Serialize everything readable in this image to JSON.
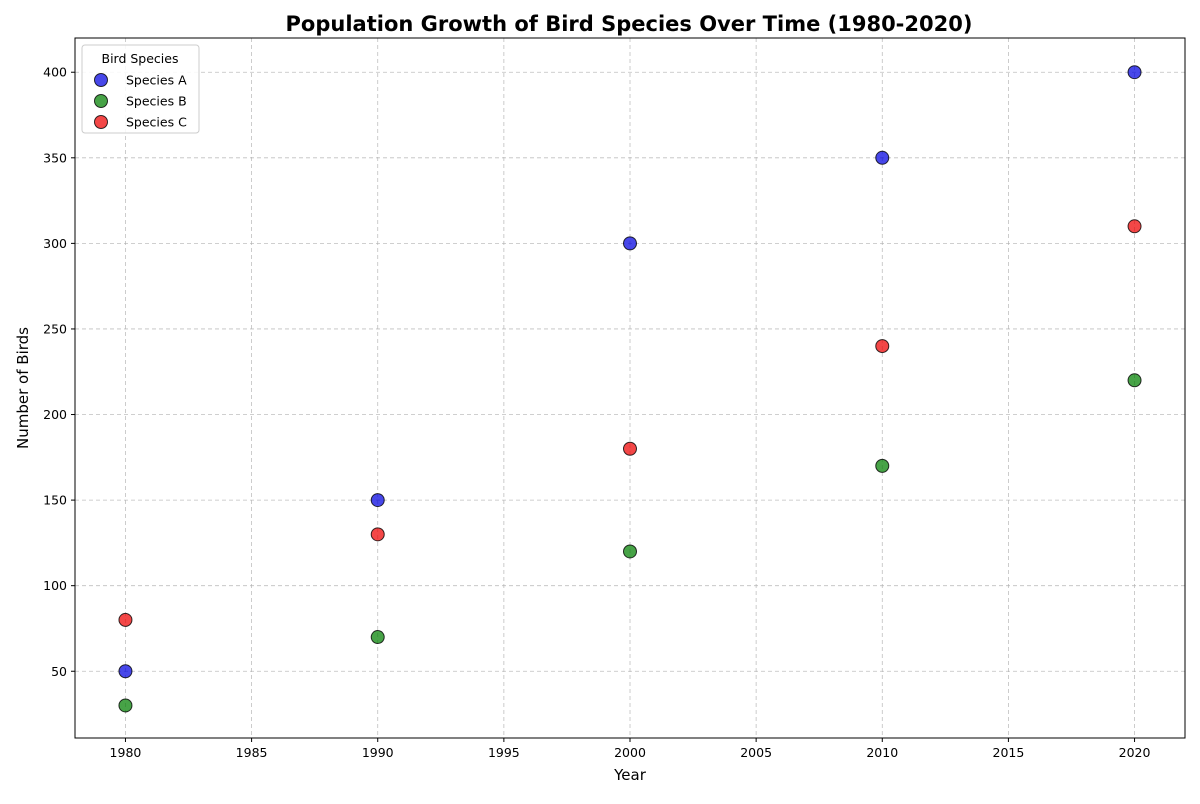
{
  "chart_data": {
    "type": "scatter",
    "title": "Population Growth of Bird Species Over Time (1980-2020)",
    "xlabel": "Year",
    "ylabel": "Number of Birds",
    "xlim": [
      1978,
      2022
    ],
    "ylim": [
      11,
      420
    ],
    "xticks": [
      1980,
      1985,
      1990,
      1995,
      2000,
      2005,
      2010,
      2015,
      2020
    ],
    "yticks": [
      50,
      100,
      150,
      200,
      250,
      300,
      350,
      400
    ],
    "grid": true,
    "legend": {
      "title": "Bird Species",
      "placement": "top-left"
    },
    "x": [
      1980,
      1990,
      2000,
      2010,
      2020
    ],
    "series": [
      {
        "name": "Species A",
        "color": "#0000e0",
        "values": [
          50,
          150,
          300,
          350,
          400
        ]
      },
      {
        "name": "Species B",
        "color": "#008000",
        "values": [
          30,
          70,
          120,
          170,
          220
        ]
      },
      {
        "name": "Species C",
        "color": "#ee0000",
        "values": [
          80,
          130,
          180,
          240,
          310
        ]
      }
    ]
  }
}
